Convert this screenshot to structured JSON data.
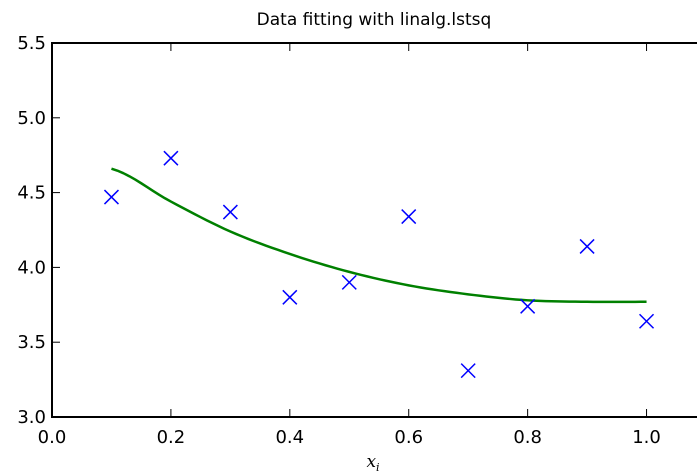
{
  "chart_data": {
    "type": "scatter",
    "title": "Data fitting with linalg.lstsq",
    "xlabel": "x",
    "xlabel_subscript": "i",
    "ylabel": "",
    "xlim": [
      0.0,
      1.1
    ],
    "ylim": [
      3.0,
      5.5
    ],
    "x_ticks": [
      "0.0",
      "0.2",
      "0.4",
      "0.6",
      "0.8",
      "1.0"
    ],
    "y_ticks": [
      "3.0",
      "3.5",
      "4.0",
      "4.5",
      "5.0",
      "5.5"
    ],
    "grid": false,
    "series": [
      {
        "kind": "scatter",
        "marker": "x",
        "color": "#0000ff",
        "points": [
          {
            "x": 0.1,
            "y": 4.47
          },
          {
            "x": 0.2,
            "y": 4.73
          },
          {
            "x": 0.3,
            "y": 4.37
          },
          {
            "x": 0.4,
            "y": 3.8
          },
          {
            "x": 0.5,
            "y": 3.9
          },
          {
            "x": 0.6,
            "y": 4.34
          },
          {
            "x": 0.7,
            "y": 3.31
          },
          {
            "x": 0.8,
            "y": 3.74
          },
          {
            "x": 0.9,
            "y": 4.14
          },
          {
            "x": 1.0,
            "y": 3.64
          }
        ]
      },
      {
        "kind": "line",
        "color": "#008000",
        "points": [
          {
            "x": 0.1,
            "y": 4.66
          },
          {
            "x": 0.2,
            "y": 4.44
          },
          {
            "x": 0.3,
            "y": 4.24
          },
          {
            "x": 0.4,
            "y": 4.09
          },
          {
            "x": 0.5,
            "y": 3.97
          },
          {
            "x": 0.6,
            "y": 3.88
          },
          {
            "x": 0.7,
            "y": 3.82
          },
          {
            "x": 0.8,
            "y": 3.78
          },
          {
            "x": 0.9,
            "y": 3.77
          },
          {
            "x": 1.0,
            "y": 3.77
          }
        ]
      }
    ]
  }
}
